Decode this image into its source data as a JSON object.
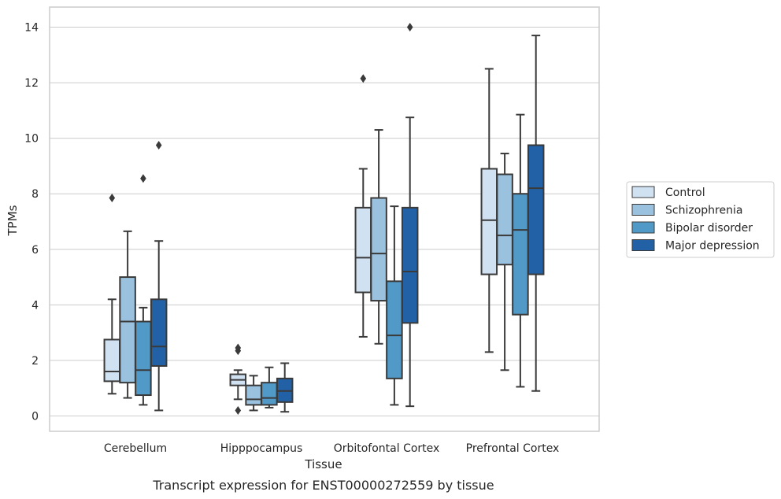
{
  "caption": "Transcript expression for ENST00000272559 by tissue",
  "chart_data": {
    "type": "boxplot",
    "title": "",
    "xlabel": "Tissue",
    "ylabel": "TPMs",
    "ylim": [
      -0.5,
      14.7
    ],
    "yticks": [
      0,
      2,
      4,
      6,
      8,
      10,
      12,
      14
    ],
    "grid": true,
    "legend_position": "right",
    "categories": [
      "Cerebellum",
      "Hipppocampus",
      "Orbitofontal Cortex",
      "Prefrontal Cortex"
    ],
    "series": [
      {
        "name": "Control",
        "color": "#d0e1f2",
        "boxes": [
          {
            "whislo": 0.8,
            "q1": 1.25,
            "med": 1.6,
            "q3": 2.75,
            "whishi": 4.2,
            "fliers": [
              7.85
            ]
          },
          {
            "whislo": 0.6,
            "q1": 1.1,
            "med": 1.3,
            "q3": 1.5,
            "whishi": 1.65,
            "fliers": [
              2.35,
              2.45,
              0.2
            ]
          },
          {
            "whislo": 2.85,
            "q1": 4.45,
            "med": 5.7,
            "q3": 7.5,
            "whishi": 8.9,
            "fliers": [
              12.15
            ]
          },
          {
            "whislo": 2.3,
            "q1": 5.1,
            "med": 7.05,
            "q3": 8.9,
            "whishi": 12.5,
            "fliers": []
          }
        ]
      },
      {
        "name": "Schizophrenia",
        "color": "#9ac2de",
        "boxes": [
          {
            "whislo": 0.65,
            "q1": 1.2,
            "med": 3.4,
            "q3": 5.0,
            "whishi": 6.65,
            "fliers": []
          },
          {
            "whislo": 0.2,
            "q1": 0.4,
            "med": 0.6,
            "q3": 1.1,
            "whishi": 1.45,
            "fliers": []
          },
          {
            "whislo": 2.6,
            "q1": 4.15,
            "med": 5.85,
            "q3": 7.85,
            "whishi": 10.3,
            "fliers": []
          },
          {
            "whislo": 1.65,
            "q1": 5.45,
            "med": 6.5,
            "q3": 8.7,
            "whishi": 9.45,
            "fliers": []
          }
        ]
      },
      {
        "name": "Bipolar disorder",
        "color": "#5199c7",
        "boxes": [
          {
            "whislo": 0.4,
            "q1": 0.75,
            "med": 1.65,
            "q3": 3.4,
            "whishi": 3.9,
            "fliers": [
              8.55
            ]
          },
          {
            "whislo": 0.3,
            "q1": 0.4,
            "med": 0.65,
            "q3": 1.2,
            "whishi": 1.75,
            "fliers": []
          },
          {
            "whislo": 0.4,
            "q1": 1.35,
            "med": 2.9,
            "q3": 4.85,
            "whishi": 7.55,
            "fliers": []
          },
          {
            "whislo": 1.05,
            "q1": 3.65,
            "med": 6.7,
            "q3": 8.0,
            "whishi": 10.85,
            "fliers": []
          }
        ]
      },
      {
        "name": "Major depression",
        "color": "#2261a6",
        "boxes": [
          {
            "whislo": 0.2,
            "q1": 1.8,
            "med": 2.5,
            "q3": 4.2,
            "whishi": 6.3,
            "fliers": [
              9.75
            ]
          },
          {
            "whislo": 0.15,
            "q1": 0.5,
            "med": 0.9,
            "q3": 1.35,
            "whishi": 1.9,
            "fliers": []
          },
          {
            "whislo": 0.35,
            "q1": 3.35,
            "med": 5.2,
            "q3": 7.5,
            "whishi": 10.75,
            "fliers": [
              14.0
            ]
          },
          {
            "whislo": 0.9,
            "q1": 5.1,
            "med": 8.2,
            "q3": 9.75,
            "whishi": 13.7,
            "fliers": []
          }
        ]
      }
    ]
  }
}
